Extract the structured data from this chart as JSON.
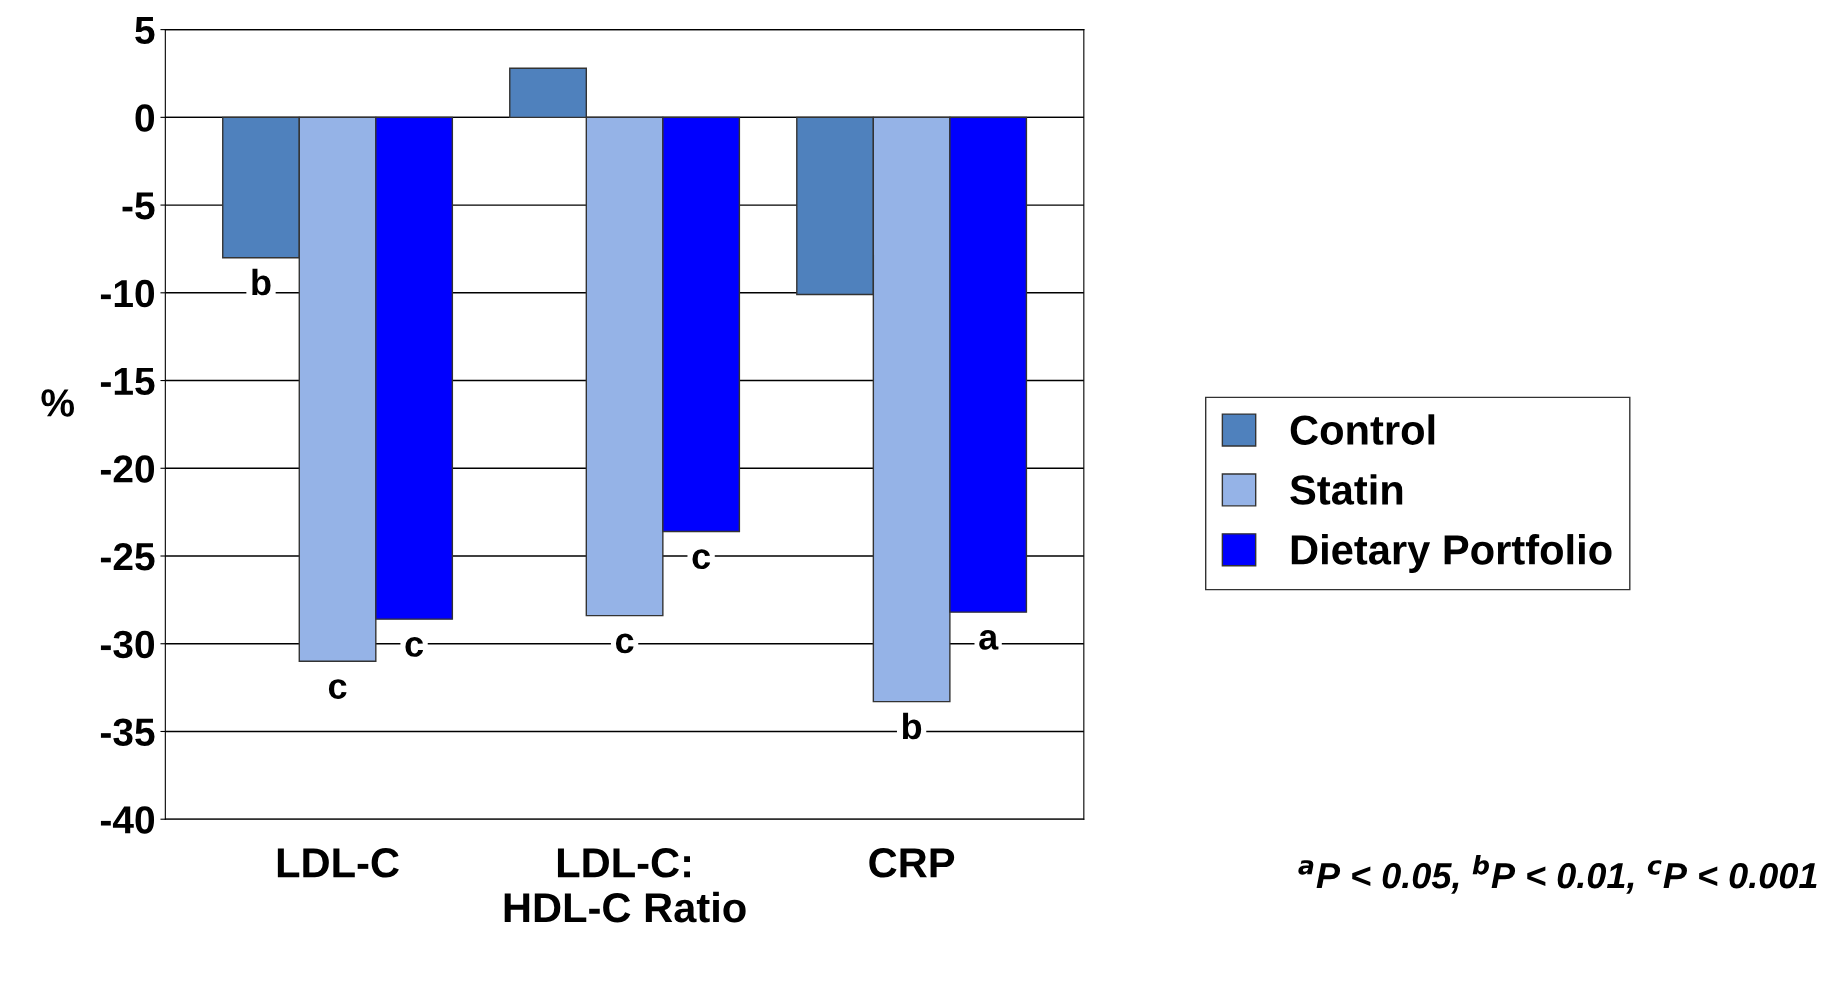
{
  "chart_data": {
    "type": "bar",
    "ylabel": "%",
    "categories": [
      "LDL-C",
      "LDL-C:\nHDL-C Ratio",
      "CRP"
    ],
    "series": [
      {
        "name": "Control",
        "color": "#4f81bd",
        "values": [
          -8.0,
          2.8,
          -10.1
        ],
        "value_labels": [
          "b",
          null,
          null
        ]
      },
      {
        "name": "Statin",
        "color": "#95b3e7",
        "values": [
          -31.0,
          -28.4,
          -33.3
        ],
        "value_labels": [
          "c",
          "c",
          "b"
        ]
      },
      {
        "name": "Dietary Portfolio",
        "color": "#0000ff",
        "values": [
          -28.6,
          -23.6,
          -28.2
        ],
        "value_labels": [
          "c",
          "c",
          "a"
        ]
      }
    ],
    "ylim": [
      -40,
      5
    ],
    "yticks": [
      -40,
      -35,
      -30,
      -25,
      -20,
      -15,
      -10,
      -5,
      0,
      5
    ],
    "grid": "y",
    "legend": "right",
    "annotations": [
      "$^{a}$P < 0.05, $^{b}$P < 0.01, $^{c}$P < 0.001"
    ]
  }
}
